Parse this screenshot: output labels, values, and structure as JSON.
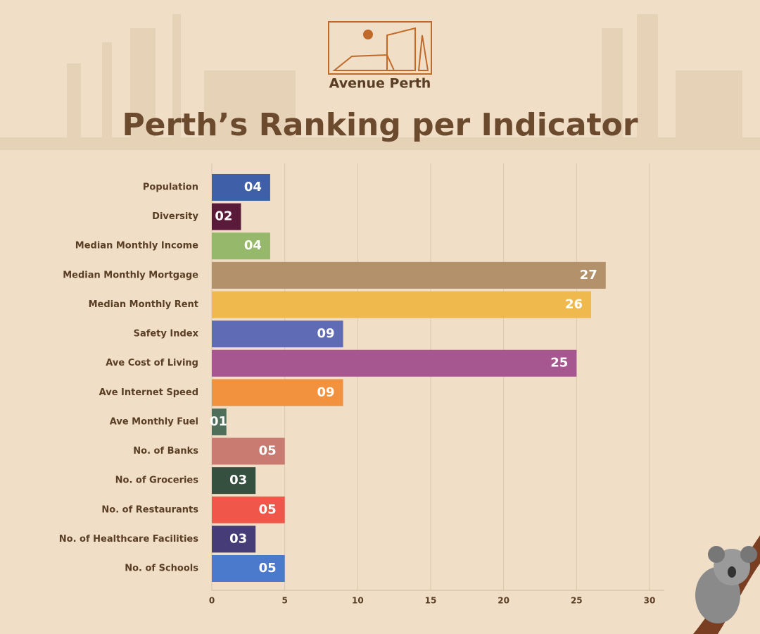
{
  "brand": "Avenue Perth",
  "chart_data": {
    "type": "hbar",
    "title": "Perth’s Ranking per Indicator",
    "categories": [
      "Population",
      "Diversity",
      "Median Monthly Income",
      "Median Monthly Mortgage",
      "Median Monthly Rent",
      "Safety Index",
      "Ave Cost of Living",
      "Ave Internet Speed",
      "Ave Monthly Fuel",
      "No. of Banks",
      "No. of Groceries",
      "No. of Restaurants",
      "No. of Healthcare Facilities",
      "No. of Schools"
    ],
    "values": [
      4,
      2,
      4,
      27,
      26,
      9,
      25,
      9,
      1,
      5,
      3,
      5,
      3,
      5
    ],
    "value_labels": [
      "04",
      "02",
      "04",
      "27",
      "26",
      "09",
      "25",
      "09",
      "01",
      "05",
      "03",
      "05",
      "03",
      "05"
    ],
    "colors": [
      "#3f5fa8",
      "#5a1a3a",
      "#96b86a",
      "#b3916a",
      "#f0b94e",
      "#5f6bb5",
      "#a6578f",
      "#f2913e",
      "#4e6e5a",
      "#c97b72",
      "#35503f",
      "#f0574a",
      "#463c78",
      "#4b79cc"
    ],
    "xlim": [
      0,
      31
    ],
    "xticks": [
      0,
      5,
      10,
      15,
      20,
      25,
      30
    ],
    "grid": true
  }
}
